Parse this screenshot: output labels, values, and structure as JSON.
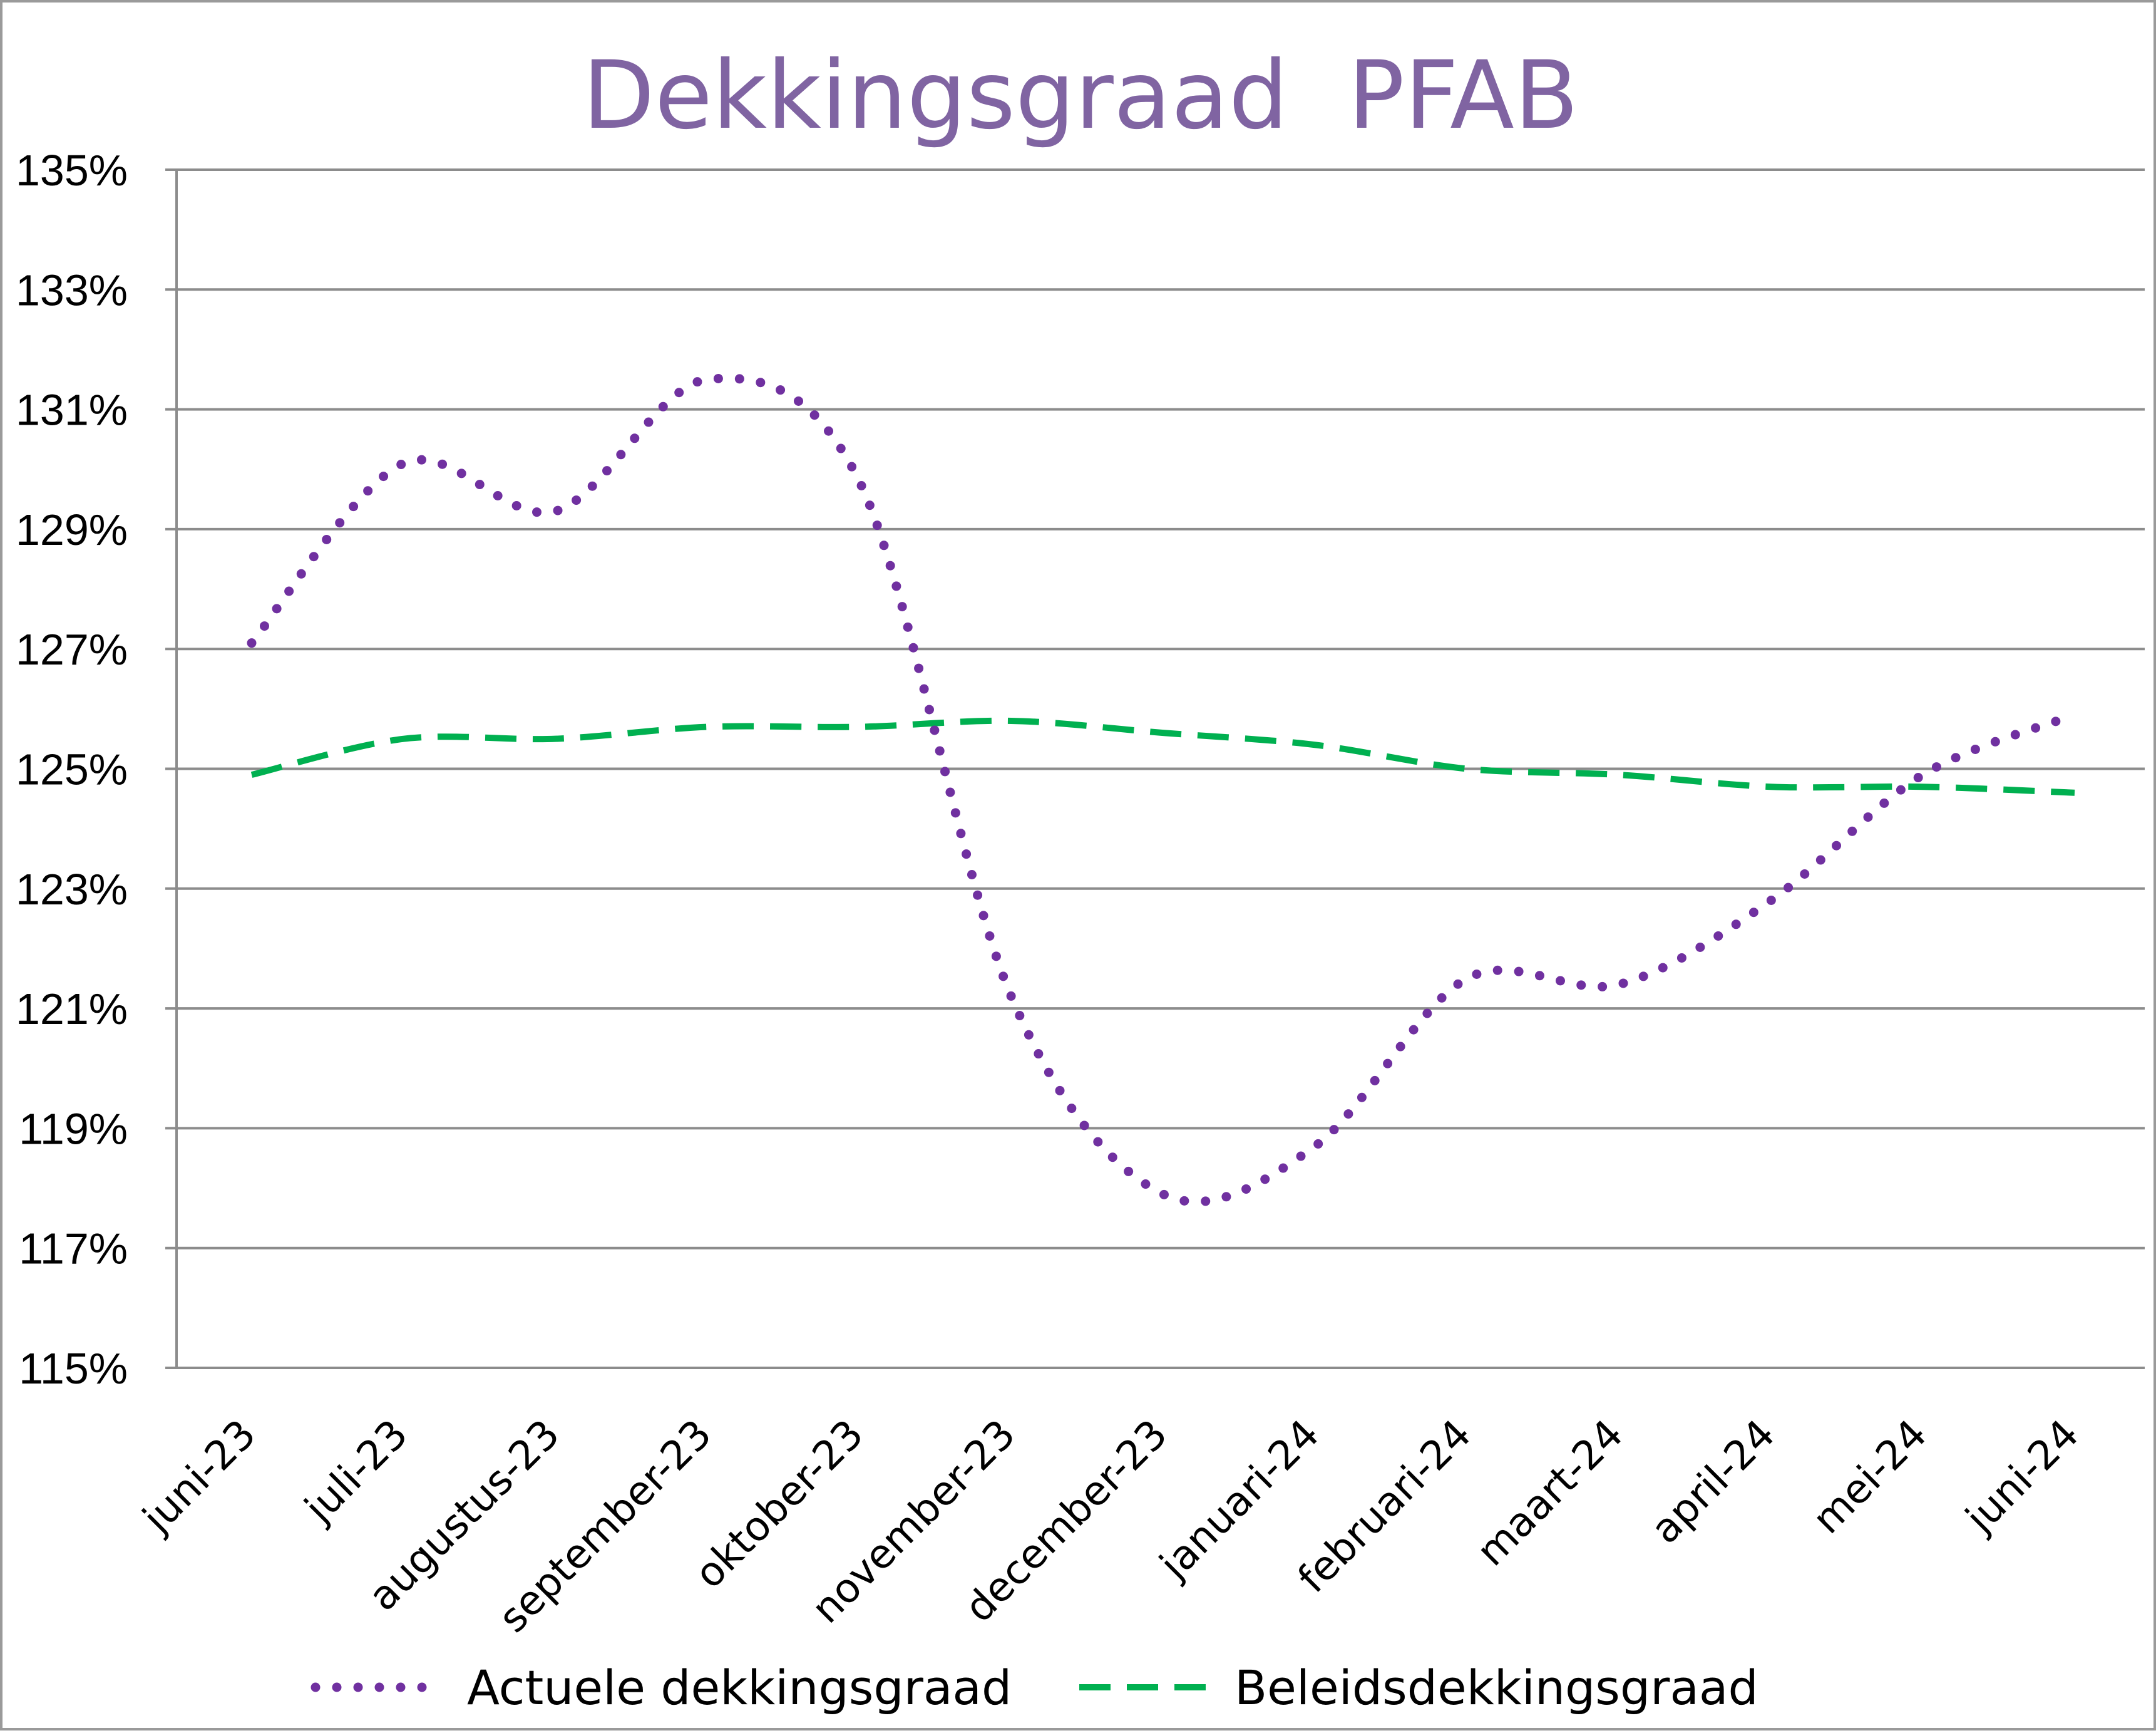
{
  "chart_data": {
    "type": "line",
    "title": "Dekkingsgraad  PFAB",
    "xlabel": "",
    "ylabel": "",
    "categories": [
      "juni-23",
      "juli-23",
      "augustus-23",
      "september-23",
      "oktober-23",
      "november-23",
      "december-23",
      "januari-24",
      "februari-24",
      "maart-24",
      "april-24",
      "mei-24",
      "juni-24"
    ],
    "ylim": [
      115,
      135
    ],
    "yticks": [
      115,
      117,
      119,
      121,
      123,
      125,
      127,
      129,
      131,
      133,
      135
    ],
    "ytick_labels": [
      "115%",
      "117%",
      "119%",
      "121%",
      "123%",
      "125%",
      "127%",
      "129%",
      "131%",
      "133%",
      "135%"
    ],
    "grid": true,
    "legend_position": "bottom",
    "series": [
      {
        "name": "Actuele dekkingsgraad",
        "color": "#7030a0",
        "style": "dotted",
        "values": [
          127.1,
          130.1,
          129.3,
          131.5,
          129.8,
          121.2,
          117.9,
          118.7,
          121.5,
          121.4,
          122.8,
          124.9,
          125.9
        ]
      },
      {
        "name": "Beleidsdekkingsgraad",
        "color": "#00b050",
        "style": "dashed",
        "values": [
          124.9,
          125.5,
          125.5,
          125.7,
          125.7,
          125.8,
          125.6,
          125.4,
          125.0,
          124.9,
          124.7,
          124.7,
          124.6
        ]
      }
    ]
  }
}
